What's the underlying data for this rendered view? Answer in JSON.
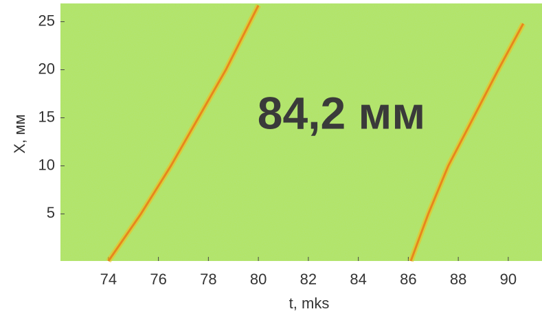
{
  "chart_data": {
    "type": "line",
    "xlabel": "t, mks",
    "ylabel": "X, мм",
    "annotation": "84,2 мм",
    "background": "#b4e35c",
    "series": [
      {
        "color": "#e8861c",
        "x": [
          74.0,
          75.3,
          76.5,
          77.6,
          78.7,
          80.0
        ],
        "values": [
          0.1,
          5,
          10,
          15,
          20,
          26.7
        ]
      },
      {
        "color": "#e8861c",
        "x": [
          86.1,
          86.8,
          87.6,
          88.6,
          89.6,
          90.6
        ],
        "values": [
          0.1,
          5,
          10,
          15,
          20,
          24.8
        ]
      }
    ],
    "xlim": [
      72.08,
      91.35
    ],
    "xticks": [
      74,
      76,
      78,
      80,
      82,
      84,
      86,
      88,
      90
    ],
    "ylim": [
      0.1,
      26.9
    ],
    "yticks": [
      5,
      10,
      15,
      20,
      25
    ]
  }
}
